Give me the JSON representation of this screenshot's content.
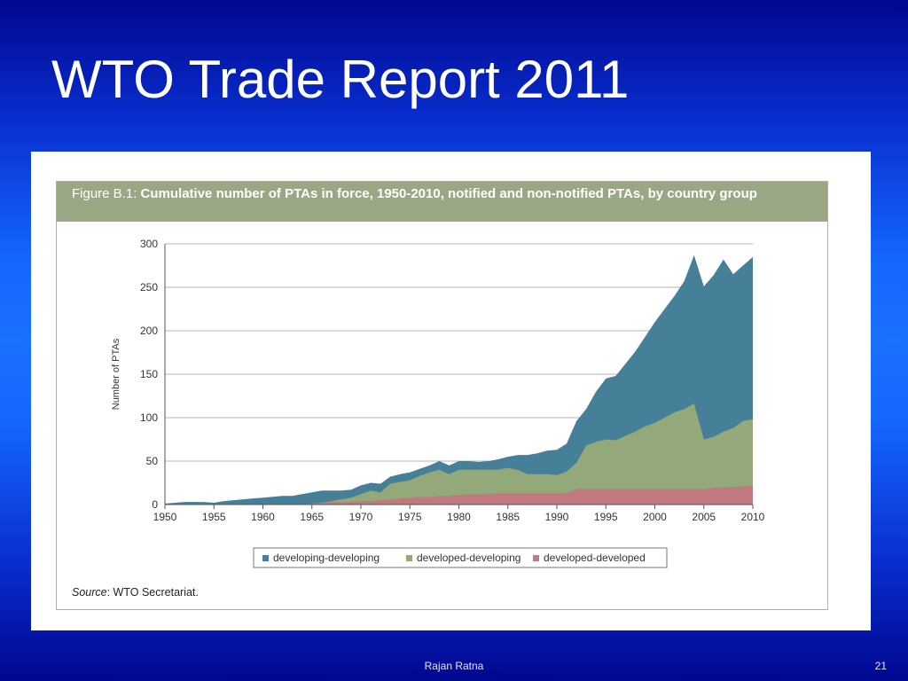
{
  "slide": {
    "title": "WTO Trade Report 2011",
    "footer_author": "Rajan Ratna",
    "page_number": "21"
  },
  "figure": {
    "label": "Figure B.1:",
    "caption": "Cumulative number of PTAs in force, 1950-2010, notified and non-notified PTAs, by country group",
    "source_key": "Source",
    "source_value": ": WTO Secretariat."
  },
  "colors": {
    "developing_developing": "#467f98",
    "developed_developing": "#93a97a",
    "developed_developed": "#c07a7f",
    "header_band": "#9aa784"
  },
  "chart_data": {
    "type": "area",
    "stacked": true,
    "title": "Cumulative number of PTAs in force, 1950-2010, notified and non-notified PTAs, by country group",
    "xlabel": "",
    "ylabel": "Number of PTAs",
    "xlim": [
      1950,
      2010
    ],
    "ylim": [
      0,
      300
    ],
    "x_ticks": [
      1950,
      1955,
      1960,
      1965,
      1970,
      1975,
      1980,
      1985,
      1990,
      1995,
      2000,
      2005,
      2010
    ],
    "y_ticks": [
      0,
      50,
      100,
      150,
      200,
      250,
      300
    ],
    "grid": "horizontal",
    "legend_position": "bottom",
    "x": [
      1950,
      1951,
      1952,
      1953,
      1954,
      1955,
      1956,
      1957,
      1958,
      1959,
      1960,
      1961,
      1962,
      1963,
      1964,
      1965,
      1966,
      1967,
      1968,
      1969,
      1970,
      1971,
      1972,
      1973,
      1974,
      1975,
      1976,
      1977,
      1978,
      1979,
      1980,
      1981,
      1982,
      1983,
      1984,
      1985,
      1986,
      1987,
      1988,
      1989,
      1990,
      1991,
      1992,
      1993,
      1994,
      1995,
      1996,
      1997,
      1998,
      1999,
      2000,
      2001,
      2002,
      2003,
      2004,
      2005,
      2006,
      2007,
      2008,
      2009,
      2010
    ],
    "series": [
      {
        "name": "developing-developing",
        "color": "#467f98",
        "cumulative_total": [
          1,
          2,
          3,
          3,
          3,
          2,
          4,
          5,
          6,
          7,
          8,
          9,
          10,
          10,
          12,
          14,
          16,
          16,
          16,
          17,
          22,
          25,
          24,
          32,
          35,
          37,
          41,
          45,
          50,
          45,
          50,
          50,
          49,
          50,
          52,
          55,
          57,
          57,
          59,
          62,
          63,
          70,
          96,
          110,
          130,
          145,
          148,
          162,
          176,
          193,
          210,
          225,
          240,
          257,
          287,
          251,
          264,
          282,
          265,
          275,
          285
        ]
      },
      {
        "name": "developed-developing",
        "color": "#93a97a",
        "cumulative_total": [
          0,
          0,
          0,
          0,
          0,
          0,
          0,
          0,
          0,
          0,
          0,
          0,
          0,
          0,
          0,
          1,
          2,
          4,
          6,
          8,
          12,
          16,
          14,
          24,
          26,
          28,
          33,
          37,
          40,
          35,
          40,
          40,
          40,
          40,
          40,
          42,
          40,
          35,
          35,
          35,
          34,
          38,
          48,
          68,
          72,
          75,
          74,
          79,
          84,
          90,
          94,
          100,
          106,
          110,
          116,
          75,
          78,
          84,
          88,
          96,
          98
        ]
      },
      {
        "name": "developed-developed",
        "color": "#c07a7f",
        "cumulative_total": [
          0,
          0,
          0,
          0,
          0,
          0,
          0,
          0,
          0,
          0,
          0,
          0,
          0,
          0,
          0,
          1,
          2,
          3,
          3,
          3,
          4,
          4,
          5,
          6,
          7,
          8,
          9,
          9,
          10,
          10,
          11,
          12,
          12,
          12,
          13,
          13,
          13,
          13,
          13,
          13,
          13,
          13,
          18,
          18,
          18,
          18,
          18,
          18,
          18,
          18,
          18,
          18,
          18,
          18,
          18,
          18,
          19,
          20,
          20,
          21,
          22
        ]
      }
    ]
  }
}
